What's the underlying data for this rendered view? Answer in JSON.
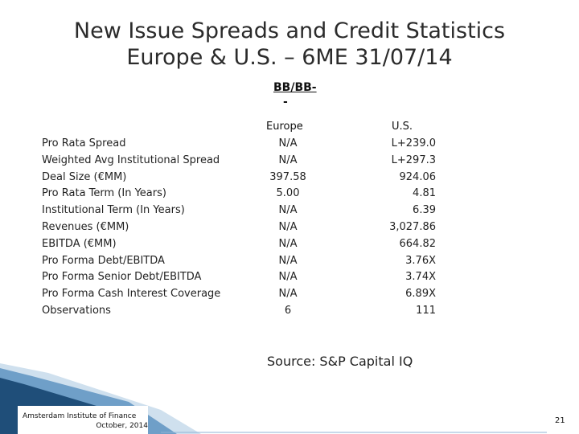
{
  "title": {
    "line1": "New Issue Spreads and Credit Statistics",
    "line2": "Europe & U.S. – 6ME 31/07/14"
  },
  "table": {
    "group_header": "BB/BB-",
    "columns": [
      "Europe",
      "U.S."
    ],
    "rows": [
      {
        "label": "Pro Rata Spread",
        "europe": "N/A",
        "us": "L+239.0"
      },
      {
        "label": "Weighted Avg Institutional Spread",
        "europe": "N/A",
        "us": "L+297.3"
      },
      {
        "label": "Deal Size (€MM)",
        "europe": "397.58",
        "us": "924.06"
      },
      {
        "label": "Pro Rata Term (In Years)",
        "europe": "5.00",
        "us": "4.81"
      },
      {
        "label": "Institutional Term (In Years)",
        "europe": "N/A",
        "us": "6.39"
      },
      {
        "label": "Revenues (€MM)",
        "europe": "N/A",
        "us": "3,027.86"
      },
      {
        "label": "EBITDA (€MM)",
        "europe": "N/A",
        "us": "664.82"
      },
      {
        "label": "Pro Forma Debt/EBITDA",
        "europe": "N/A",
        "us": "3.76X"
      },
      {
        "label": "Pro Forma Senior Debt/EBITDA",
        "europe": "N/A",
        "us": "3.74X"
      },
      {
        "label": "Pro Forma Cash Interest Coverage",
        "europe": "N/A",
        "us": "6.89X"
      },
      {
        "label": "Observations",
        "europe": "6",
        "us": "111"
      }
    ]
  },
  "source": "Source: S&P Capital IQ",
  "footer": {
    "org": "Amsterdam Institute of Finance",
    "date": "October, 2014",
    "page_number": "21"
  },
  "colors": {
    "band_dark": "#1f4e79",
    "band_mid": "#3e7cb1",
    "band_light": "#a9c8e0"
  }
}
